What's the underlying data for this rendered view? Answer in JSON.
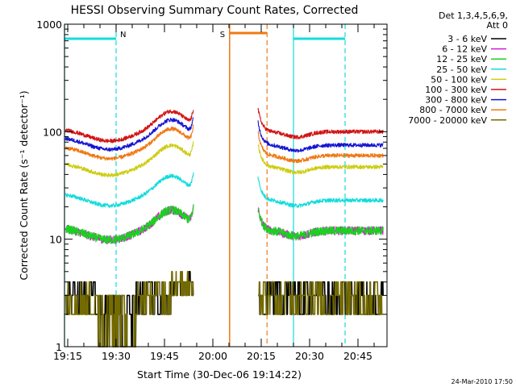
{
  "chart_data": {
    "type": "line",
    "title": "HESSI Observing Summary Count Rates, Corrected",
    "xlabel": "Start Time (30-Dec-06 19:14:22)",
    "ylabel": "Corrected Count Rate (s⁻¹ detector⁻¹)",
    "yscale": "log",
    "ylim": [
      1,
      1000
    ],
    "xlim_minutes_from_1914": [
      0,
      100
    ],
    "x_ticks": [
      "19:15",
      "19:30",
      "19:45",
      "20:00",
      "20:15",
      "20:30",
      "20:45"
    ],
    "x_tick_minutes": [
      1,
      16,
      31,
      46,
      61,
      76,
      91
    ],
    "y_ticks": [
      {
        "v": 1,
        "label": "1"
      },
      {
        "v": 10,
        "label": "10"
      },
      {
        "v": 100,
        "label": "100"
      },
      {
        "v": 1000,
        "label": "1000"
      }
    ],
    "legend_header": [
      "Det 1,3,4,5,6,9,",
      "Att 0"
    ],
    "legend_placement": "right",
    "series": [
      {
        "name": "3 - 6 keV",
        "color": "#000000",
        "a": 3.0,
        "b": 3.0
      },
      {
        "name": "6 - 12 keV",
        "color": "#d21ed2",
        "a": 13,
        "b": 12
      },
      {
        "name": "12 - 25 keV",
        "color": "#19d21e",
        "a": 13,
        "b": 12
      },
      {
        "name": "25 - 50 keV",
        "color": "#14dcdc",
        "a": 27,
        "b": 23
      },
      {
        "name": "50 - 100 keV",
        "color": "#cdcd14",
        "a": 52,
        "b": 47
      },
      {
        "name": "100 - 300 keV",
        "color": "#d21414",
        "a": 108,
        "b": 100
      },
      {
        "name": "300 - 800 keV",
        "color": "#1414d2",
        "a": 90,
        "b": 75
      },
      {
        "name": "800 - 7000 keV",
        "color": "#f07814",
        "a": 74,
        "b": 60
      },
      {
        "name": "7000 - 20000 keV",
        "color": "#736b00",
        "a": 3.0,
        "b": 3.0
      }
    ],
    "gap_minutes": [
      40,
      60
    ],
    "markers": [
      {
        "type": "night",
        "label": "N",
        "start_min": 0,
        "end_min": 16,
        "color": "#14dcdc"
      },
      {
        "type": "night",
        "label": "",
        "start_min": 71,
        "end_min": 87,
        "color": "#14dcdc"
      },
      {
        "type": "saa",
        "label": "S",
        "start_min": 51.2,
        "end_min": 62.8,
        "color": "#f07814"
      }
    ],
    "grid": false
  },
  "footer_date": "24-Mar-2010 17:50"
}
